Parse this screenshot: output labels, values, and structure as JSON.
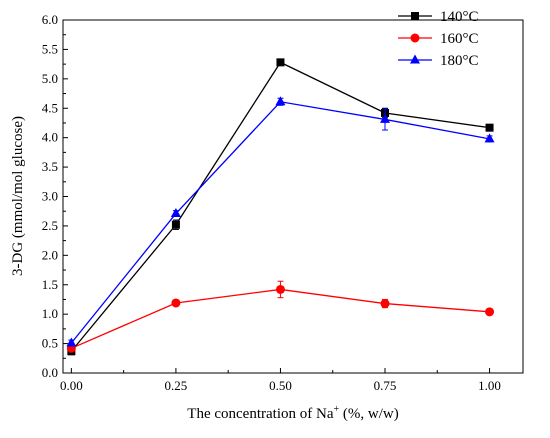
{
  "chart_data": {
    "type": "line",
    "title": "",
    "x_ticks": [
      "0.00",
      "0.25",
      "0.50",
      "0.75",
      "1.00"
    ],
    "y_ticks": [
      "0.0",
      "0.5",
      "1.0",
      "1.5",
      "2.0",
      "2.5",
      "3.0",
      "3.5",
      "4.0",
      "4.5",
      "5.0",
      "5.5",
      "6.0"
    ],
    "xlim": [
      -0.02,
      1.08
    ],
    "ylim": [
      0,
      6
    ],
    "xlabel_main": "The concentration of Na",
    "xlabel_sup": "+",
    "xlabel_tail": " (%, w/w)",
    "ylabel": "3-DG (mmol/mol glucose)",
    "legend_position": "top-right",
    "grid": false,
    "series": [
      {
        "name": "140°C",
        "color": "#000000",
        "marker": "square",
        "x": [
          0.0,
          0.25,
          0.5,
          0.75,
          1.0
        ],
        "y": [
          0.37,
          2.52,
          5.28,
          4.42,
          4.17
        ],
        "err": [
          0.06,
          0.08,
          0.04,
          0.08,
          0.04
        ]
      },
      {
        "name": "160°C",
        "color": "#ff0000",
        "marker": "circle",
        "x": [
          0.0,
          0.25,
          0.5,
          0.75,
          1.0
        ],
        "y": [
          0.42,
          1.19,
          1.42,
          1.18,
          1.04
        ],
        "err": [
          0.04,
          0.04,
          0.14,
          0.07,
          0.03
        ]
      },
      {
        "name": "180°C",
        "color": "#0000ff",
        "marker": "triangle",
        "x": [
          0.0,
          0.25,
          0.5,
          0.75,
          1.0
        ],
        "y": [
          0.51,
          2.71,
          4.61,
          4.31,
          3.98
        ],
        "err": [
          0.05,
          0.05,
          0.06,
          0.18,
          0.05
        ]
      }
    ]
  }
}
